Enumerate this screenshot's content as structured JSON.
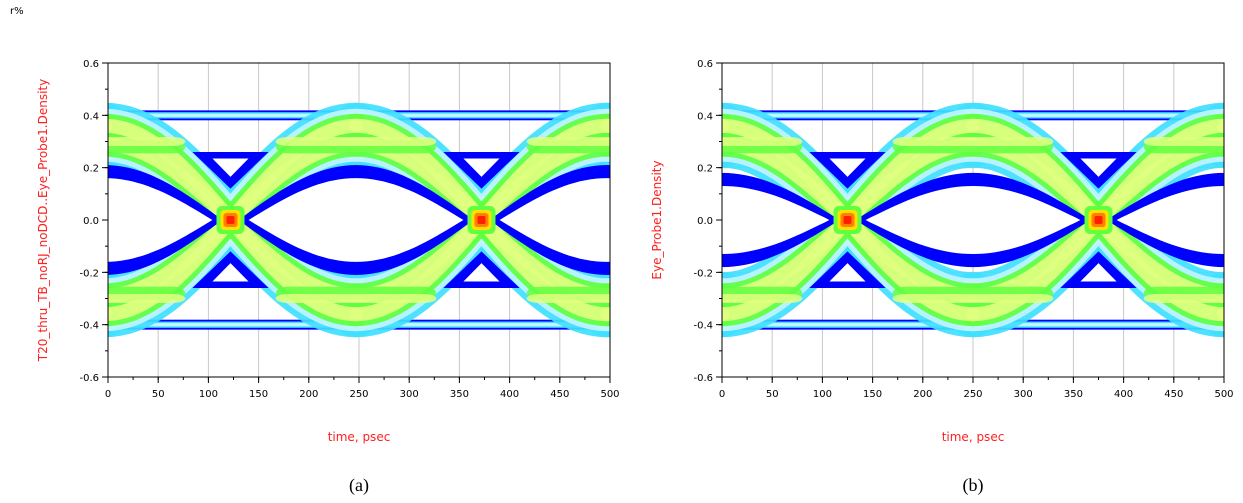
{
  "corner_mark": "r%",
  "chart_data": [
    {
      "type": "heatmap",
      "plot": "eye-diagram",
      "caption": "(a)",
      "xlabel": "time, psec",
      "ylabel": "T20_thru_TB_noRJ_noDCD..Eye_Probe1.Density",
      "xlim": [
        0,
        500
      ],
      "ylim": [
        -0.6,
        0.6
      ],
      "xticks": [
        0,
        50,
        100,
        150,
        200,
        250,
        300,
        350,
        400,
        450,
        500
      ],
      "yticks": [
        -0.6,
        -0.4,
        -0.2,
        0.0,
        0.2,
        0.4,
        0.6
      ],
      "grid": true,
      "crossings": [
        122,
        372
      ],
      "levels": [
        -0.4,
        0.4
      ],
      "eye_opening": 0.16,
      "colors": [
        "#0000ff",
        "#40e0ff",
        "#c0f4ff",
        "#60ff40",
        "#e0ff80",
        "#ffe000",
        "#ff8000",
        "#ff2000"
      ]
    },
    {
      "type": "heatmap",
      "plot": "eye-diagram",
      "caption": "(b)",
      "xlabel": "time, psec",
      "ylabel": "Eye_Probe1.Density",
      "xlim": [
        0,
        500
      ],
      "ylim": [
        -0.6,
        0.6
      ],
      "xticks": [
        0,
        50,
        100,
        150,
        200,
        250,
        300,
        350,
        400,
        450,
        500
      ],
      "yticks": [
        -0.6,
        -0.4,
        -0.2,
        0.0,
        0.2,
        0.4,
        0.6
      ],
      "grid": true,
      "crossings": [
        125,
        375
      ],
      "levels": [
        -0.4,
        0.4
      ],
      "eye_opening": 0.13,
      "colors": [
        "#0000ff",
        "#40e0ff",
        "#c0f4ff",
        "#60ff40",
        "#e0ff80",
        "#ffe000",
        "#ff8000",
        "#ff2000"
      ]
    }
  ]
}
